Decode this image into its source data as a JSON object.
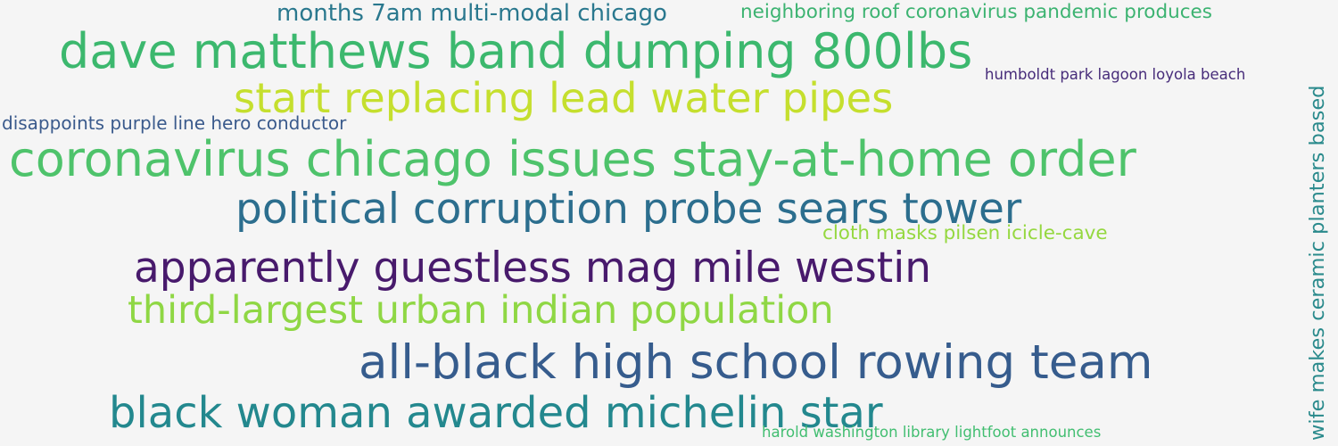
{
  "word_cloud": {
    "phrases": [
      {
        "text": "months 7am multi-modal chicago",
        "color": "#2a788e"
      },
      {
        "text": "neighboring roof coronavirus pandemic produces",
        "color": "#3cb371"
      },
      {
        "text": "dave matthews band dumping 800lbs",
        "color": "#3cb86e"
      },
      {
        "text": "humboldt park lagoon loyola beach",
        "color": "#472c7a"
      },
      {
        "text": "start replacing lead water pipes",
        "color": "#c5df2e"
      },
      {
        "text": "disappoints purple line hero conductor",
        "color": "#3a5a8c"
      },
      {
        "text": "coronavirus chicago issues stay-at-home order",
        "color": "#4ec36b"
      },
      {
        "text": "political corruption probe sears tower",
        "color": "#2c6e8e"
      },
      {
        "text": "cloth masks pilsen icicle-cave",
        "color": "#95d840"
      },
      {
        "text": "apparently guestless mag mile westin",
        "color": "#481a6c"
      },
      {
        "text": "third-largest urban indian population",
        "color": "#8fd744"
      },
      {
        "text": "all-black high school rowing team",
        "color": "#365c8d"
      },
      {
        "text": "black woman awarded michelin star",
        "color": "#23888e"
      },
      {
        "text": "harold washington library lightfoot announces",
        "color": "#42be71"
      },
      {
        "text": "wife makes ceramic planters based",
        "color": "#2a8a8c"
      }
    ]
  }
}
